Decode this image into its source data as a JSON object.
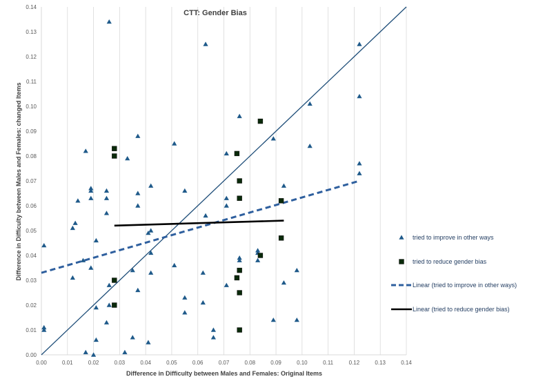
{
  "chart_data": {
    "type": "scatter",
    "title": "CTT: Gender Bias",
    "xlabel": "Difference in Difficulty between Males and Females: Original Items",
    "ylabel": "Difference in Difficulty between Males and Females: changed Items",
    "xlim": [
      0,
      0.14
    ],
    "ylim": [
      0,
      0.14
    ],
    "xticks": [
      "0.00",
      "0.01",
      "0.02",
      "0.03",
      "0.04",
      "0.05",
      "0.06",
      "0.07",
      "0.08",
      "0.09",
      "0.10",
      "0.11",
      "0.12",
      "0.13",
      "0.14"
    ],
    "yticks": [
      "0.00",
      "0.01",
      "0.02",
      "0.03",
      "0.04",
      "0.05",
      "0.06",
      "0.07",
      "0.08",
      "0.09",
      "0.10",
      "0.11",
      "0.12",
      "0.13",
      "0.14"
    ],
    "grid": "vertical",
    "legend_position": "right",
    "colors": {
      "triangle": "#1f5a8a",
      "square_fill": "#0a2a0a",
      "identity_line": "#1f4e79",
      "trend_improve": "#2e5f9e",
      "trend_bias": "#000000",
      "gridline": "#d9d9d9"
    },
    "series": [
      {
        "name": "tried to improve in other ways",
        "marker": "triangle",
        "points": [
          [
            0.001,
            0.044
          ],
          [
            0.001,
            0.011
          ],
          [
            0.001,
            0.01
          ],
          [
            0.012,
            0.051
          ],
          [
            0.012,
            0.031
          ],
          [
            0.013,
            0.053
          ],
          [
            0.014,
            0.062
          ],
          [
            0.016,
            0.038
          ],
          [
            0.017,
            0.082
          ],
          [
            0.017,
            0.001
          ],
          [
            0.019,
            0.067
          ],
          [
            0.019,
            0.066
          ],
          [
            0.019,
            0.063
          ],
          [
            0.019,
            0.035
          ],
          [
            0.02,
            0.0
          ],
          [
            0.021,
            0.046
          ],
          [
            0.021,
            0.019
          ],
          [
            0.021,
            0.006
          ],
          [
            0.025,
            0.066
          ],
          [
            0.025,
            0.063
          ],
          [
            0.025,
            0.057
          ],
          [
            0.025,
            0.013
          ],
          [
            0.026,
            0.134
          ],
          [
            0.026,
            0.028
          ],
          [
            0.026,
            0.02
          ],
          [
            0.032,
            0.001
          ],
          [
            0.033,
            0.079
          ],
          [
            0.035,
            0.034
          ],
          [
            0.035,
            0.007
          ],
          [
            0.037,
            0.088
          ],
          [
            0.037,
            0.065
          ],
          [
            0.037,
            0.06
          ],
          [
            0.037,
            0.026
          ],
          [
            0.041,
            0.049
          ],
          [
            0.041,
            0.005
          ],
          [
            0.042,
            0.068
          ],
          [
            0.042,
            0.05
          ],
          [
            0.042,
            0.041
          ],
          [
            0.042,
            0.033
          ],
          [
            0.051,
            0.085
          ],
          [
            0.051,
            0.036
          ],
          [
            0.055,
            0.066
          ],
          [
            0.055,
            0.023
          ],
          [
            0.055,
            0.017
          ],
          [
            0.062,
            0.033
          ],
          [
            0.062,
            0.021
          ],
          [
            0.063,
            0.125
          ],
          [
            0.063,
            0.056
          ],
          [
            0.066,
            0.01
          ],
          [
            0.066,
            0.007
          ],
          [
            0.071,
            0.081
          ],
          [
            0.071,
            0.063
          ],
          [
            0.071,
            0.06
          ],
          [
            0.071,
            0.028
          ],
          [
            0.076,
            0.096
          ],
          [
            0.076,
            0.039
          ],
          [
            0.076,
            0.038
          ],
          [
            0.083,
            0.042
          ],
          [
            0.083,
            0.041
          ],
          [
            0.083,
            0.038
          ],
          [
            0.089,
            0.087
          ],
          [
            0.089,
            0.014
          ],
          [
            0.093,
            0.068
          ],
          [
            0.093,
            0.029
          ],
          [
            0.098,
            0.034
          ],
          [
            0.098,
            0.014
          ],
          [
            0.103,
            0.101
          ],
          [
            0.103,
            0.084
          ],
          [
            0.122,
            0.125
          ],
          [
            0.122,
            0.104
          ],
          [
            0.122,
            0.077
          ],
          [
            0.122,
            0.073
          ]
        ]
      },
      {
        "name": "tried to reduce gender bias",
        "marker": "square",
        "points": [
          [
            0.028,
            0.083
          ],
          [
            0.028,
            0.08
          ],
          [
            0.028,
            0.03
          ],
          [
            0.028,
            0.02
          ],
          [
            0.075,
            0.081
          ],
          [
            0.075,
            0.031
          ],
          [
            0.076,
            0.07
          ],
          [
            0.076,
            0.063
          ],
          [
            0.076,
            0.034
          ],
          [
            0.076,
            0.025
          ],
          [
            0.076,
            0.01
          ],
          [
            0.084,
            0.094
          ],
          [
            0.084,
            0.04
          ],
          [
            0.092,
            0.062
          ],
          [
            0.092,
            0.047
          ]
        ]
      }
    ],
    "trendlines": [
      {
        "name": "Linear (tried to improve in other ways)",
        "style": "dashed",
        "from": [
          0.0,
          0.033
        ],
        "to": [
          0.122,
          0.07
        ]
      },
      {
        "name": "Linear (tried to reduce gender bias)",
        "style": "solid",
        "from": [
          0.028,
          0.052
        ],
        "to": [
          0.093,
          0.054
        ]
      }
    ],
    "reference_line": {
      "from": [
        0.0,
        0.0
      ],
      "to": [
        0.14,
        0.14
      ]
    }
  }
}
